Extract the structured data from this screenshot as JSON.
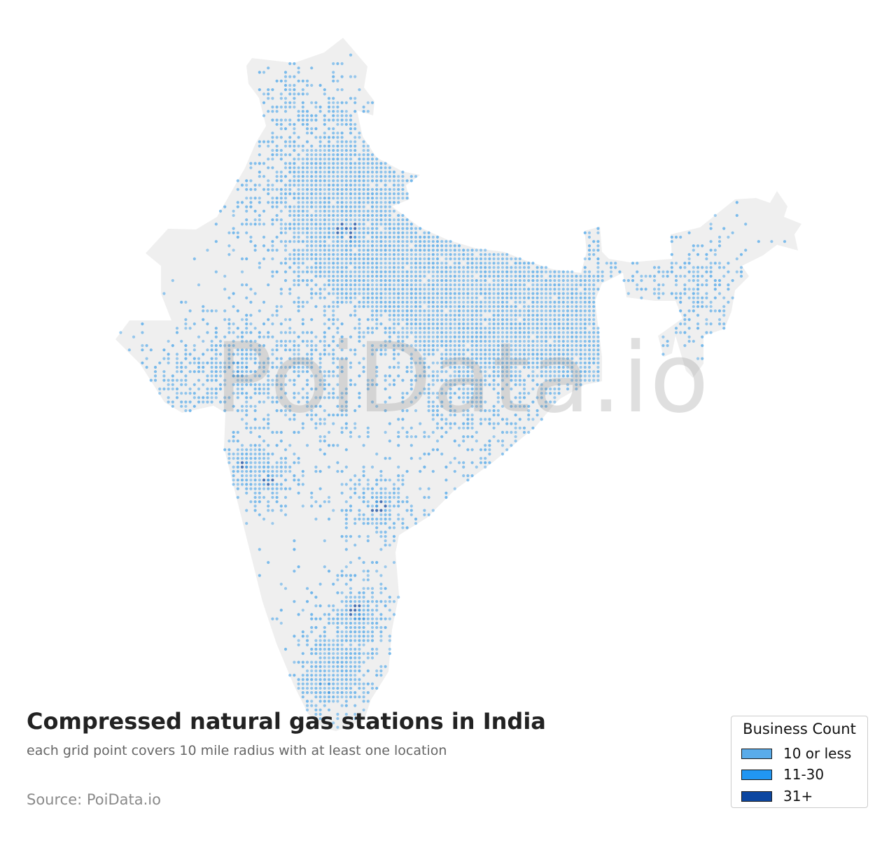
{
  "title": "Compressed natural gas stations in India",
  "subtitle": "each grid point covers 10 mile radius with at least one location",
  "source": "Source: PoiData.io",
  "watermark": "PoiData.io",
  "colors": {
    "land": "#efefef",
    "low": "#5aacea",
    "mid": "#2a8ee0",
    "high": "#0d47a1",
    "background": "#ffffff"
  },
  "legend": {
    "title": "Business Count",
    "items": [
      {
        "label": "10 or less",
        "color": "#5aacea"
      },
      {
        "label": "11-30",
        "color": "#2196f3"
      },
      {
        "label": "31+",
        "color": "#0d47a1"
      }
    ]
  },
  "chart_data": {
    "type": "scatter",
    "title": "Compressed natural gas stations in India",
    "subtitle": "each grid point covers 10 mile radius with at least one location",
    "legend_title": "Business Count",
    "legend_placement": "bottom-right",
    "categories": [
      "10 or less",
      "11-30",
      "31+"
    ],
    "grid": false,
    "clusters": [
      {
        "lon": 76.8,
        "lat": 30.7,
        "density": 0.95,
        "spread": 2.3,
        "level": "low"
      },
      {
        "lon": 77.2,
        "lat": 28.6,
        "density": 0.95,
        "spread": 1.3,
        "level": "high"
      },
      {
        "lon": 78.5,
        "lat": 27.8,
        "density": 0.8,
        "spread": 1.6,
        "level": "low"
      },
      {
        "lon": 80.9,
        "lat": 26.8,
        "density": 0.75,
        "spread": 2.2,
        "level": "low"
      },
      {
        "lon": 83.0,
        "lat": 26.0,
        "density": 0.85,
        "spread": 2.4,
        "level": "low"
      },
      {
        "lon": 85.5,
        "lat": 25.8,
        "density": 0.8,
        "spread": 2.0,
        "level": "low"
      },
      {
        "lon": 87.5,
        "lat": 24.0,
        "density": 0.7,
        "spread": 1.5,
        "level": "low"
      },
      {
        "lon": 88.4,
        "lat": 22.6,
        "density": 0.9,
        "spread": 0.8,
        "level": "high"
      },
      {
        "lon": 72.6,
        "lat": 23.0,
        "density": 0.75,
        "spread": 1.2,
        "level": "mid"
      },
      {
        "lon": 70.0,
        "lat": 22.5,
        "density": 0.45,
        "spread": 1.2,
        "level": "low"
      },
      {
        "lon": 72.9,
        "lat": 19.1,
        "density": 0.85,
        "spread": 0.7,
        "level": "high"
      },
      {
        "lon": 73.9,
        "lat": 18.5,
        "density": 0.8,
        "spread": 0.8,
        "level": "high"
      },
      {
        "lon": 78.5,
        "lat": 17.4,
        "density": 0.8,
        "spread": 1.0,
        "level": "high"
      },
      {
        "lon": 77.6,
        "lat": 13.0,
        "density": 0.85,
        "spread": 1.0,
        "level": "high"
      },
      {
        "lon": 80.2,
        "lat": 13.1,
        "density": 0.85,
        "spread": 0.7,
        "level": "high"
      },
      {
        "lon": 76.2,
        "lat": 10.0,
        "density": 0.8,
        "spread": 0.9,
        "level": "mid"
      },
      {
        "lon": 77.0,
        "lat": 11.0,
        "density": 0.8,
        "spread": 1.0,
        "level": "low"
      },
      {
        "lon": 74.8,
        "lat": 34.1,
        "density": 0.6,
        "spread": 0.6,
        "level": "low"
      },
      {
        "lon": 91.7,
        "lat": 26.1,
        "density": 0.55,
        "spread": 1.4,
        "level": "low"
      },
      {
        "lon": 85.8,
        "lat": 20.3,
        "density": 0.55,
        "spread": 1.2,
        "level": "low"
      },
      {
        "lon": 81.6,
        "lat": 21.3,
        "density": 0.45,
        "spread": 1.4,
        "level": "low"
      },
      {
        "lon": 75.8,
        "lat": 22.7,
        "density": 0.5,
        "spread": 1.5,
        "level": "low"
      },
      {
        "lon": 83.2,
        "lat": 17.7,
        "density": 0.55,
        "spread": 1.0,
        "level": "low"
      }
    ]
  }
}
